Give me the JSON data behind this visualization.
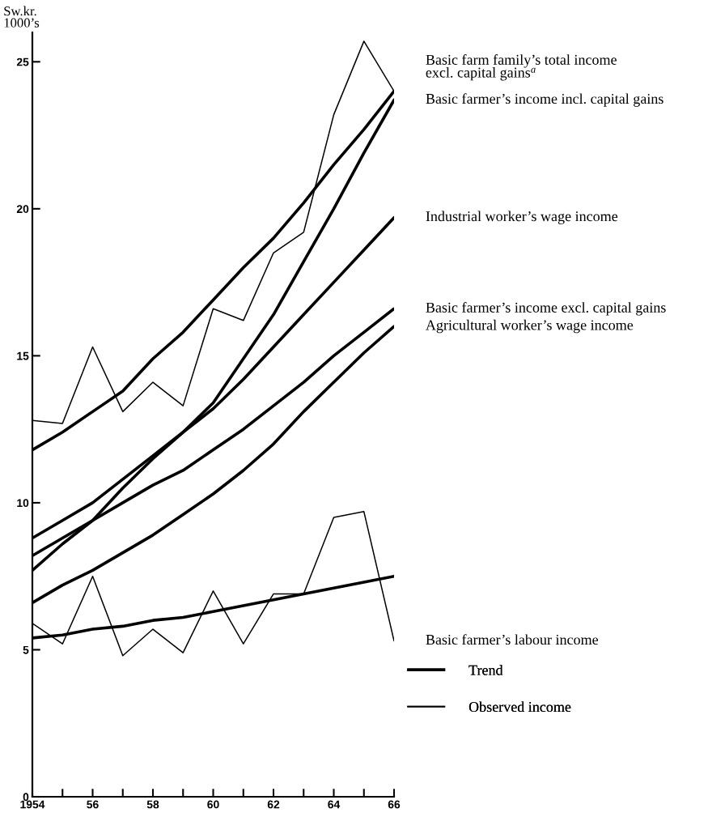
{
  "chart_data": {
    "type": "line",
    "ylabel": "Sw.kr.\n1000’s",
    "x": [
      1954,
      1955,
      1956,
      1957,
      1958,
      1959,
      1960,
      1961,
      1962,
      1963,
      1964,
      1965,
      1966
    ],
    "xlim": [
      1954,
      1966
    ],
    "xticks": [
      {
        "value": 1954,
        "label": "1954"
      },
      {
        "value": 1955,
        "label": null
      },
      {
        "value": 1956,
        "label": "56"
      },
      {
        "value": 1957,
        "label": null
      },
      {
        "value": 1958,
        "label": "58"
      },
      {
        "value": 1959,
        "label": null
      },
      {
        "value": 1960,
        "label": "60"
      },
      {
        "value": 1961,
        "label": null
      },
      {
        "value": 1962,
        "label": "62"
      },
      {
        "value": 1963,
        "label": null
      },
      {
        "value": 1964,
        "label": "64"
      },
      {
        "value": 1965,
        "label": null
      },
      {
        "value": 1966,
        "label": "66"
      }
    ],
    "ylim": [
      0,
      26
    ],
    "yticks": [
      0,
      5,
      10,
      15,
      20,
      25
    ],
    "legend": "top right",
    "series": [
      {
        "name": "Basic farm family’s total income\nexcl. capital gains$^{a}$",
        "color": "#000000",
        "x": [
          1954,
          1955,
          1956,
          1957,
          1958,
          1959,
          1960,
          1961,
          1962,
          1963,
          1964,
          1965,
          1966
        ],
        "values": [
          11.8,
          12.4,
          13.1,
          13.8,
          14.9,
          15.8,
          16.9,
          18.0,
          19.0,
          20.2,
          21.5,
          22.7,
          24.0
        ]
      },
      {
        "name": "Basic farmer’s income incl. capital gains",
        "color": "#000000",
        "x": [
          1954,
          1955,
          1956,
          1957,
          1958,
          1959,
          1960,
          1961,
          1962,
          1963,
          1964,
          1965,
          1966
        ],
        "values": [
          7.7,
          8.6,
          9.4,
          10.5,
          11.5,
          12.4,
          13.4,
          14.9,
          16.4,
          18.2,
          20.0,
          21.9,
          23.7
        ]
      },
      {
        "name": "Industrial worker’s wage income",
        "color": "#000000",
        "x": [
          1954,
          1955,
          1956,
          1957,
          1958,
          1959,
          1960,
          1961,
          1962,
          1963,
          1964,
          1965,
          1966
        ],
        "values": [
          8.8,
          9.4,
          10.0,
          10.8,
          11.6,
          12.4,
          13.2,
          14.2,
          15.3,
          16.4,
          17.5,
          18.6,
          19.7
        ]
      },
      {
        "name": "Basic farmer’s income excl. capital gains",
        "color": "#000000",
        "x": [
          1954,
          1955,
          1956,
          1957,
          1958,
          1959,
          1960,
          1961,
          1962,
          1963,
          1964,
          1965,
          1966
        ],
        "values": [
          8.2,
          8.8,
          9.4,
          10.0,
          10.6,
          11.1,
          11.8,
          12.5,
          13.3,
          14.1,
          15.0,
          15.8,
          16.6
        ]
      },
      {
        "name": "Agricultural worker’s wage income",
        "color": "#000000",
        "x": [
          1954,
          1955,
          1956,
          1957,
          1958,
          1959,
          1960,
          1961,
          1962,
          1963,
          1964,
          1965,
          1966
        ],
        "values": [
          6.6,
          7.2,
          7.7,
          8.3,
          8.9,
          9.6,
          10.3,
          11.1,
          12.0,
          13.1,
          14.1,
          15.1,
          16.0
        ]
      },
      {
        "color": "#000000",
        "x": [
          1954,
          1955,
          1956,
          1957,
          1958,
          1959,
          1960,
          1961,
          1962,
          1963,
          1964,
          1965,
          1966
        ],
        "values": [
          5.4,
          5.5,
          5.7,
          5.8,
          6.0,
          6.1,
          6.3,
          6.5,
          6.7,
          6.9,
          7.1,
          7.3,
          7.5
        ]
      },
      {
        "color": "#000000",
        "values": [
          12.8,
          12.7,
          15.3,
          13.1,
          14.1,
          13.3,
          16.6,
          16.2,
          18.5,
          19.2,
          23.2,
          25.7,
          24.0
        ]
      },
      {
        "name": "Basic farmer’s labour income",
        "color": "#000000",
        "values": [
          5.9,
          5.2,
          7.5,
          4.8,
          5.7,
          4.9,
          7.0,
          5.2,
          6.9,
          6.9,
          9.5,
          9.7,
          5.3
        ]
      }
    ],
    "annotations": [
      "Trend",
      "Observed income"
    ]
  }
}
